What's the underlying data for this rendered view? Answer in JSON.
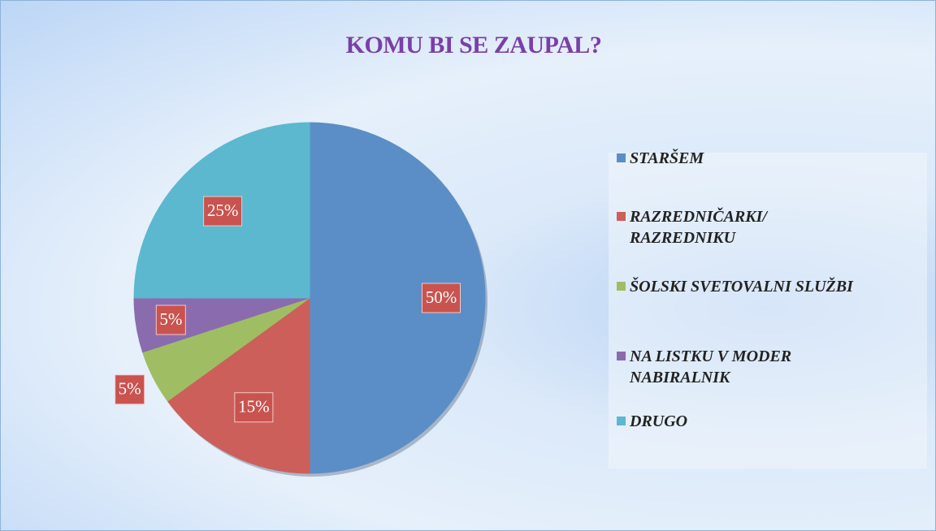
{
  "chart_data": {
    "type": "pie",
    "title": "KOMU BI SE ZAUPAL?",
    "categories": [
      "STARŠEM",
      "RAZREDNIČARKI/ RAZREDNIKU",
      "ŠOLSKI SVETOVALNI SLUŽBI",
      "NA LISTKU V MODER NABIRALNIK",
      "DRUGO"
    ],
    "values": [
      50,
      15,
      5,
      5,
      25
    ],
    "value_labels": [
      "50%",
      "15%",
      "5%",
      "5%",
      "25%"
    ],
    "colors": [
      "#5b8ec6",
      "#cd5f5a",
      "#9fbe64",
      "#8a6cae",
      "#5bb8cf"
    ],
    "legend": "right"
  }
}
